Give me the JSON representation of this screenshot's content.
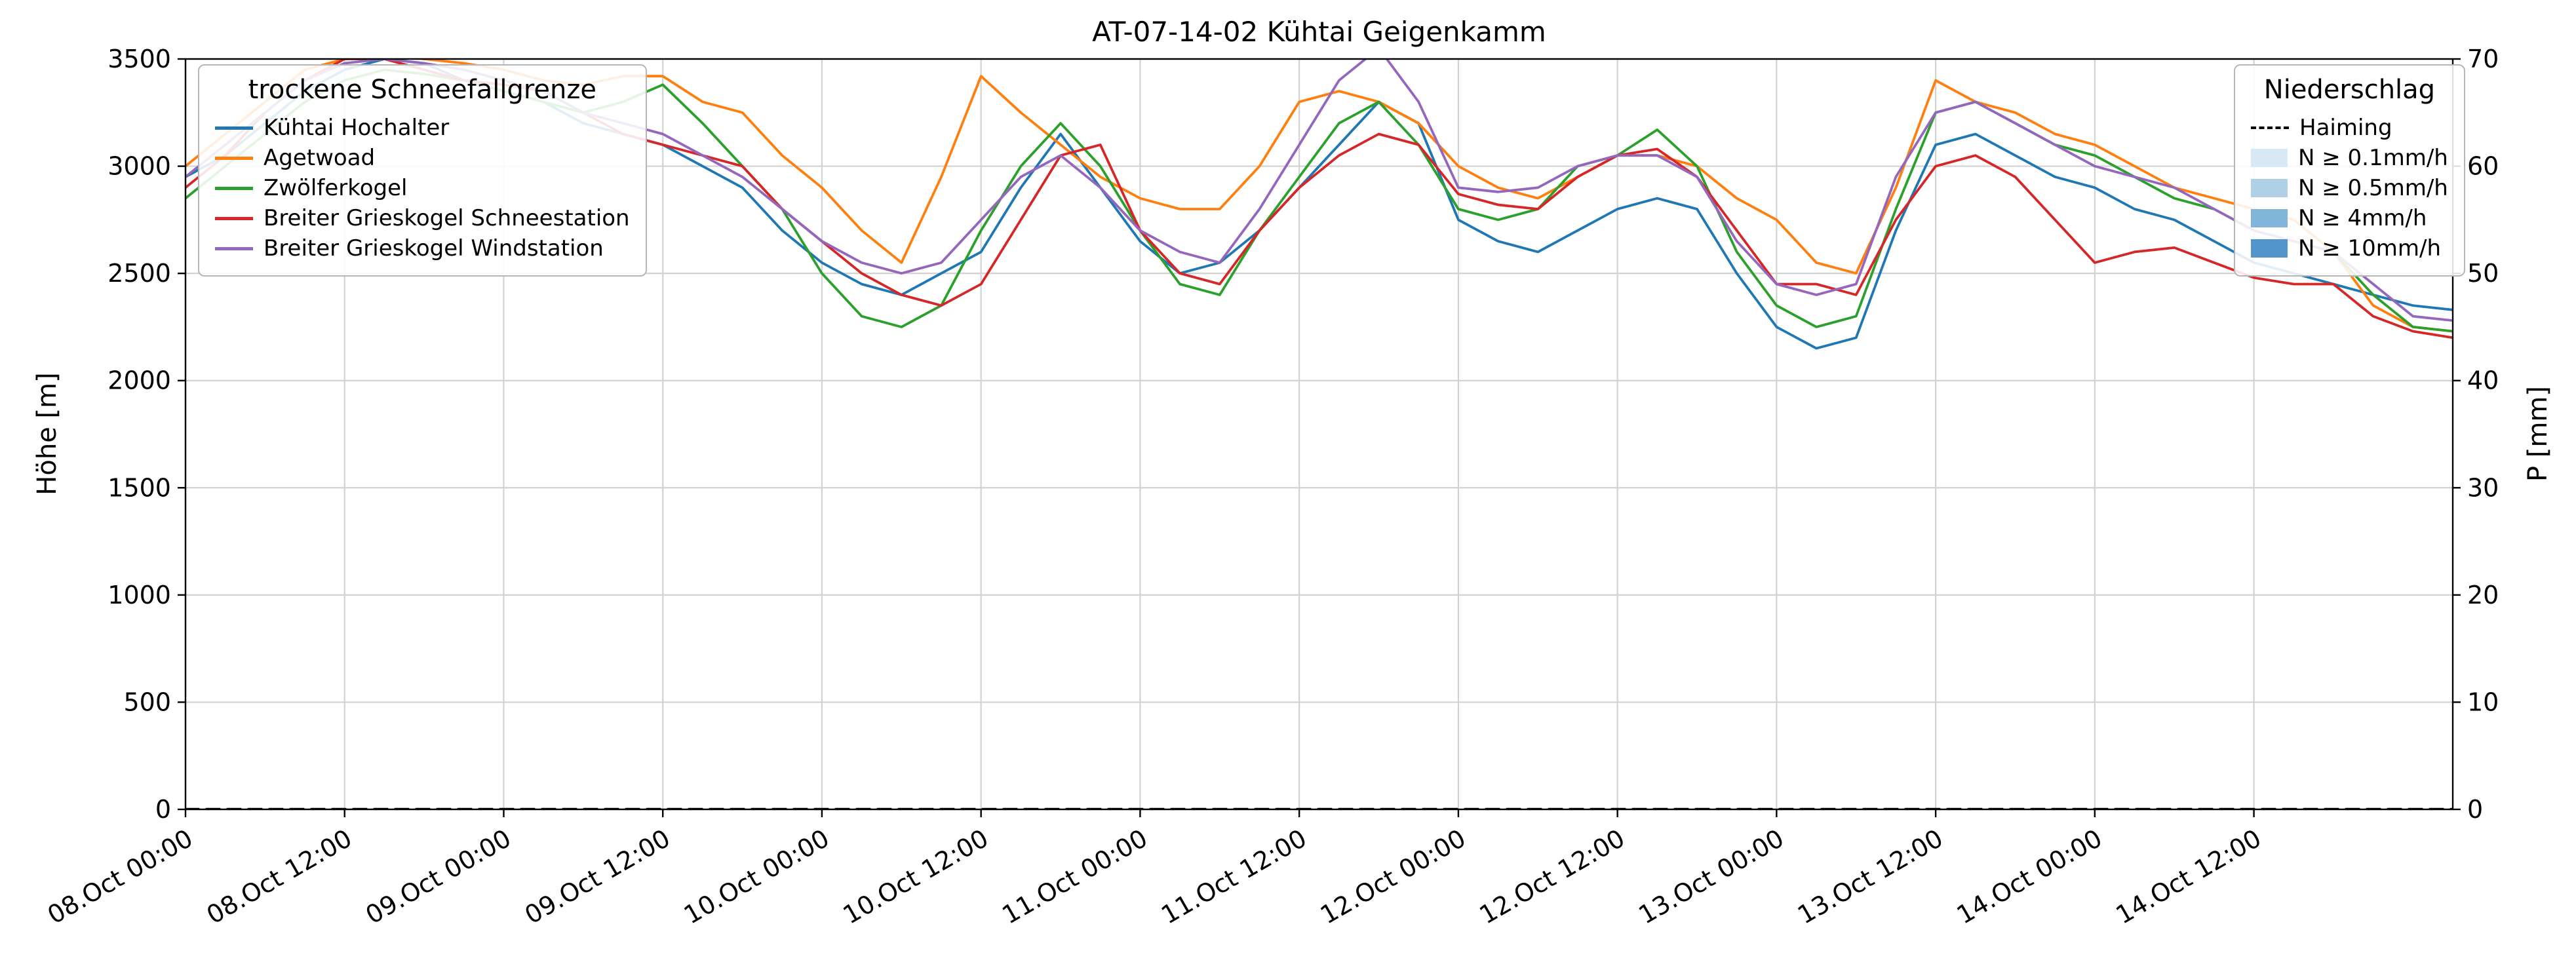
{
  "chart_data": {
    "type": "line",
    "title": "AT-07-14-02 Kühtai Geigenkamm",
    "xlabel": "",
    "ylabel_left": "Höhe [m]",
    "ylabel_right": "P [mm]",
    "ylim_left": [
      0,
      3500
    ],
    "ylim_right": [
      0,
      70
    ],
    "yticks_left": [
      0,
      500,
      1000,
      1500,
      2000,
      2500,
      3000,
      3500
    ],
    "yticks_right": [
      0,
      10,
      20,
      30,
      40,
      50,
      60,
      70
    ],
    "grid": true,
    "x_unit": "hours since 08.Oct 00:00",
    "x_domain_hours": [
      0,
      171
    ],
    "x_ticks": [
      {
        "hour": 0,
        "label": "08.Oct 00:00"
      },
      {
        "hour": 12,
        "label": "08.Oct 12:00"
      },
      {
        "hour": 24,
        "label": "09.Oct 00:00"
      },
      {
        "hour": 36,
        "label": "09.Oct 12:00"
      },
      {
        "hour": 48,
        "label": "10.Oct 00:00"
      },
      {
        "hour": 60,
        "label": "10.Oct 12:00"
      },
      {
        "hour": 72,
        "label": "11.Oct 00:00"
      },
      {
        "hour": 84,
        "label": "11.Oct 12:00"
      },
      {
        "hour": 96,
        "label": "12.Oct 00:00"
      },
      {
        "hour": 108,
        "label": "12.Oct 12:00"
      },
      {
        "hour": 120,
        "label": "13.Oct 00:00"
      },
      {
        "hour": 132,
        "label": "13.Oct 12:00"
      },
      {
        "hour": 144,
        "label": "14.Oct 00:00"
      },
      {
        "hour": 156,
        "label": "14.Oct 12:00"
      }
    ],
    "x_hours": [
      0,
      3,
      6,
      9,
      12,
      15,
      18,
      21,
      24,
      27,
      30,
      33,
      36,
      39,
      42,
      45,
      48,
      51,
      54,
      57,
      60,
      63,
      66,
      69,
      72,
      75,
      78,
      81,
      84,
      87,
      90,
      93,
      96,
      99,
      102,
      105,
      108,
      111,
      114,
      117,
      120,
      123,
      126,
      129,
      132,
      135,
      138,
      141,
      144,
      147,
      150,
      153,
      156,
      159,
      162,
      165,
      168,
      171
    ],
    "series": [
      {
        "name": "Kühtai Hochalter",
        "color": "#1f77b4",
        "axis": "left",
        "style": "solid",
        "values": [
          2950,
          3050,
          3200,
          3350,
          3450,
          3500,
          3480,
          3400,
          3350,
          3300,
          3200,
          3150,
          3100,
          3000,
          2900,
          2700,
          2550,
          2450,
          2400,
          2500,
          2600,
          2900,
          3150,
          2900,
          2650,
          2500,
          2550,
          2700,
          2900,
          3100,
          3300,
          3200,
          2750,
          2650,
          2600,
          2700,
          2800,
          2850,
          2800,
          2500,
          2250,
          2150,
          2200,
          2700,
          3100,
          3150,
          3050,
          2950,
          2900,
          2800,
          2750,
          2650,
          2550,
          2500,
          2450,
          2400,
          2350,
          2330
        ]
      },
      {
        "name": "Agetwoad",
        "color": "#ff7f0e",
        "axis": "left",
        "style": "solid",
        "values": [
          3000,
          3150,
          3300,
          3450,
          3500,
          3520,
          3500,
          3480,
          3450,
          3400,
          3380,
          3420,
          3420,
          3300,
          3250,
          3050,
          2900,
          2700,
          2550,
          2950,
          3420,
          3250,
          3100,
          2950,
          2850,
          2800,
          2800,
          3000,
          3300,
          3350,
          3300,
          3200,
          3000,
          2900,
          2850,
          2950,
          3050,
          3050,
          3000,
          2850,
          2750,
          2550,
          2500,
          2900,
          3400,
          3300,
          3250,
          3150,
          3100,
          3000,
          2900,
          2850,
          2800,
          2750,
          2600,
          2350,
          2250,
          2230
        ]
      },
      {
        "name": "Zwölferkogel",
        "color": "#2ca02c",
        "axis": "left",
        "style": "solid",
        "values": [
          2850,
          3000,
          3150,
          3300,
          3400,
          3450,
          3430,
          3400,
          3350,
          3300,
          3250,
          3300,
          3380,
          3200,
          3000,
          2800,
          2500,
          2300,
          2250,
          2350,
          2700,
          3000,
          3200,
          3000,
          2700,
          2450,
          2400,
          2700,
          2950,
          3200,
          3300,
          3100,
          2800,
          2750,
          2800,
          3000,
          3050,
          3170,
          3000,
          2600,
          2350,
          2250,
          2300,
          2800,
          3250,
          3300,
          3200,
          3100,
          3050,
          2950,
          2850,
          2800,
          2700,
          2650,
          2600,
          2400,
          2250,
          2230
        ]
      },
      {
        "name": "Breiter Grieskogel Schneestation",
        "color": "#d62728",
        "axis": "left",
        "style": "solid",
        "values": [
          2900,
          3050,
          3250,
          3400,
          3500,
          3500,
          3450,
          3400,
          3380,
          3350,
          3250,
          3150,
          3100,
          3050,
          3000,
          2800,
          2650,
          2500,
          2400,
          2350,
          2450,
          2750,
          3050,
          3100,
          2700,
          2500,
          2450,
          2700,
          2900,
          3050,
          3150,
          3100,
          2870,
          2820,
          2800,
          2950,
          3050,
          3080,
          2950,
          2700,
          2450,
          2450,
          2400,
          2750,
          3000,
          3050,
          2950,
          2750,
          2550,
          2600,
          2620,
          2550,
          2480,
          2450,
          2450,
          2300,
          2230,
          2200
        ]
      },
      {
        "name": "Breiter Grieskogel Windstation",
        "color": "#9467bd",
        "axis": "left",
        "style": "solid",
        "values": [
          2950,
          3100,
          3250,
          3400,
          3480,
          3500,
          3480,
          3450,
          3400,
          3350,
          3250,
          3200,
          3150,
          3050,
          2950,
          2800,
          2650,
          2550,
          2500,
          2550,
          2750,
          2950,
          3050,
          2900,
          2700,
          2600,
          2550,
          2800,
          3100,
          3400,
          3550,
          3300,
          2900,
          2880,
          2900,
          3000,
          3050,
          3050,
          2950,
          2650,
          2450,
          2400,
          2450,
          2950,
          3250,
          3300,
          3200,
          3100,
          3000,
          2950,
          2900,
          2800,
          2700,
          2650,
          2600,
          2450,
          2300,
          2280
        ]
      },
      {
        "name": "Haiming",
        "color": "#000000",
        "axis": "right",
        "style": "dashed",
        "values": [
          0,
          0,
          0,
          0,
          0,
          0,
          0,
          0,
          0,
          0,
          0,
          0,
          0,
          0,
          0,
          0,
          0,
          0,
          0,
          0,
          0,
          0,
          0,
          0,
          0,
          0,
          0,
          0,
          0,
          0,
          0,
          0,
          0,
          0,
          0,
          0,
          0,
          0,
          0,
          0,
          0,
          0,
          0,
          0,
          0,
          0,
          0,
          0,
          0,
          0,
          0,
          0,
          0,
          0,
          0,
          0,
          0,
          0
        ]
      }
    ]
  },
  "legend_snowline": {
    "title": "trockene Schneefallgrenze"
  },
  "legend_precip": {
    "title": "Niederschlag",
    "items": [
      {
        "label": "Haiming",
        "style": "dashed-line",
        "color": "#000000"
      },
      {
        "label": "N ≥ 0.1mm/h",
        "style": "patch",
        "color": "#d9e8f5"
      },
      {
        "label": "N ≥ 0.5mm/h",
        "style": "patch",
        "color": "#b0d0e8"
      },
      {
        "label": "N ≥ 4mm/h",
        "style": "patch",
        "color": "#82b5da"
      },
      {
        "label": "N ≥ 10mm/h",
        "style": "patch",
        "color": "#5295ca"
      }
    ]
  }
}
